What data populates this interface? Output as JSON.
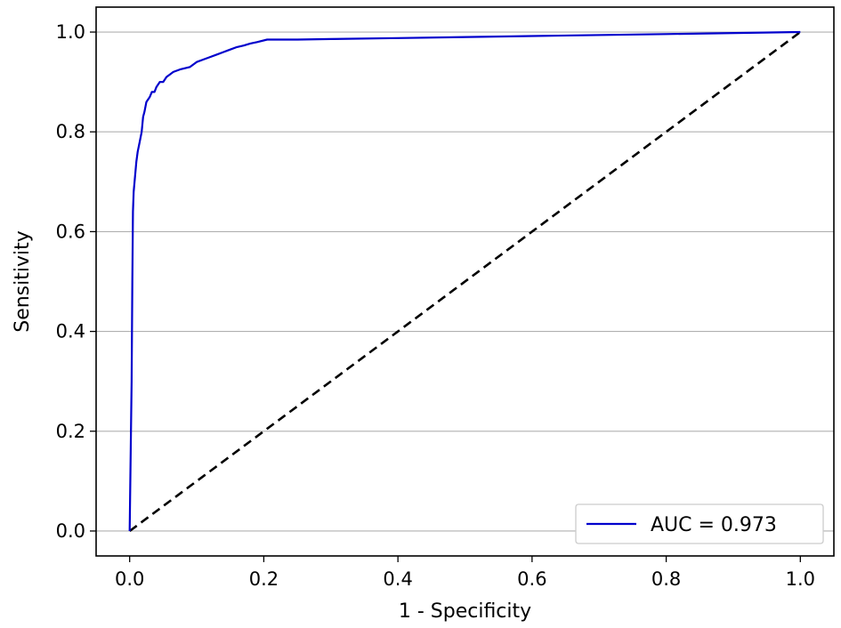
{
  "chart_data": {
    "type": "line",
    "xlabel": "1 - Specificity",
    "ylabel": "Sensitivity",
    "xlim": [
      -0.05,
      1.05
    ],
    "ylim": [
      -0.05,
      1.05
    ],
    "x_ticks": [
      0.0,
      0.2,
      0.4,
      0.6,
      0.8,
      1.0
    ],
    "y_ticks": [
      0.0,
      0.2,
      0.4,
      0.6,
      0.8,
      1.0
    ],
    "x_tick_labels": [
      "0.0",
      "0.2",
      "0.4",
      "0.6",
      "0.8",
      "1.0"
    ],
    "y_tick_labels": [
      "0.0",
      "0.2",
      "0.4",
      "0.6",
      "0.8",
      "1.0"
    ],
    "grid": "horizontal",
    "legend_position": "bottom-right",
    "series": [
      {
        "name": "AUC = 0.973",
        "color": "#0000cc",
        "style": "solid",
        "x": [
          0.0,
          0.003,
          0.004,
          0.005,
          0.006,
          0.008,
          0.01,
          0.012,
          0.015,
          0.018,
          0.02,
          0.022,
          0.025,
          0.03,
          0.033,
          0.037,
          0.04,
          0.045,
          0.05,
          0.055,
          0.06,
          0.065,
          0.075,
          0.09,
          0.1,
          0.11,
          0.12,
          0.13,
          0.14,
          0.15,
          0.16,
          0.17,
          0.18,
          0.19,
          0.205,
          0.25,
          0.3,
          0.4,
          0.6,
          0.8,
          1.0
        ],
        "y": [
          0.0,
          0.3,
          0.5,
          0.64,
          0.68,
          0.71,
          0.74,
          0.76,
          0.78,
          0.8,
          0.83,
          0.84,
          0.86,
          0.87,
          0.88,
          0.88,
          0.89,
          0.9,
          0.9,
          0.91,
          0.915,
          0.92,
          0.925,
          0.93,
          0.94,
          0.945,
          0.95,
          0.955,
          0.96,
          0.965,
          0.97,
          0.973,
          0.977,
          0.98,
          0.985,
          0.985,
          0.986,
          0.988,
          0.992,
          0.996,
          1.0
        ]
      },
      {
        "name": "",
        "color": "#000000",
        "style": "dashed",
        "x": [
          0.0,
          1.0
        ],
        "y": [
          0.0,
          1.0
        ]
      }
    ]
  }
}
